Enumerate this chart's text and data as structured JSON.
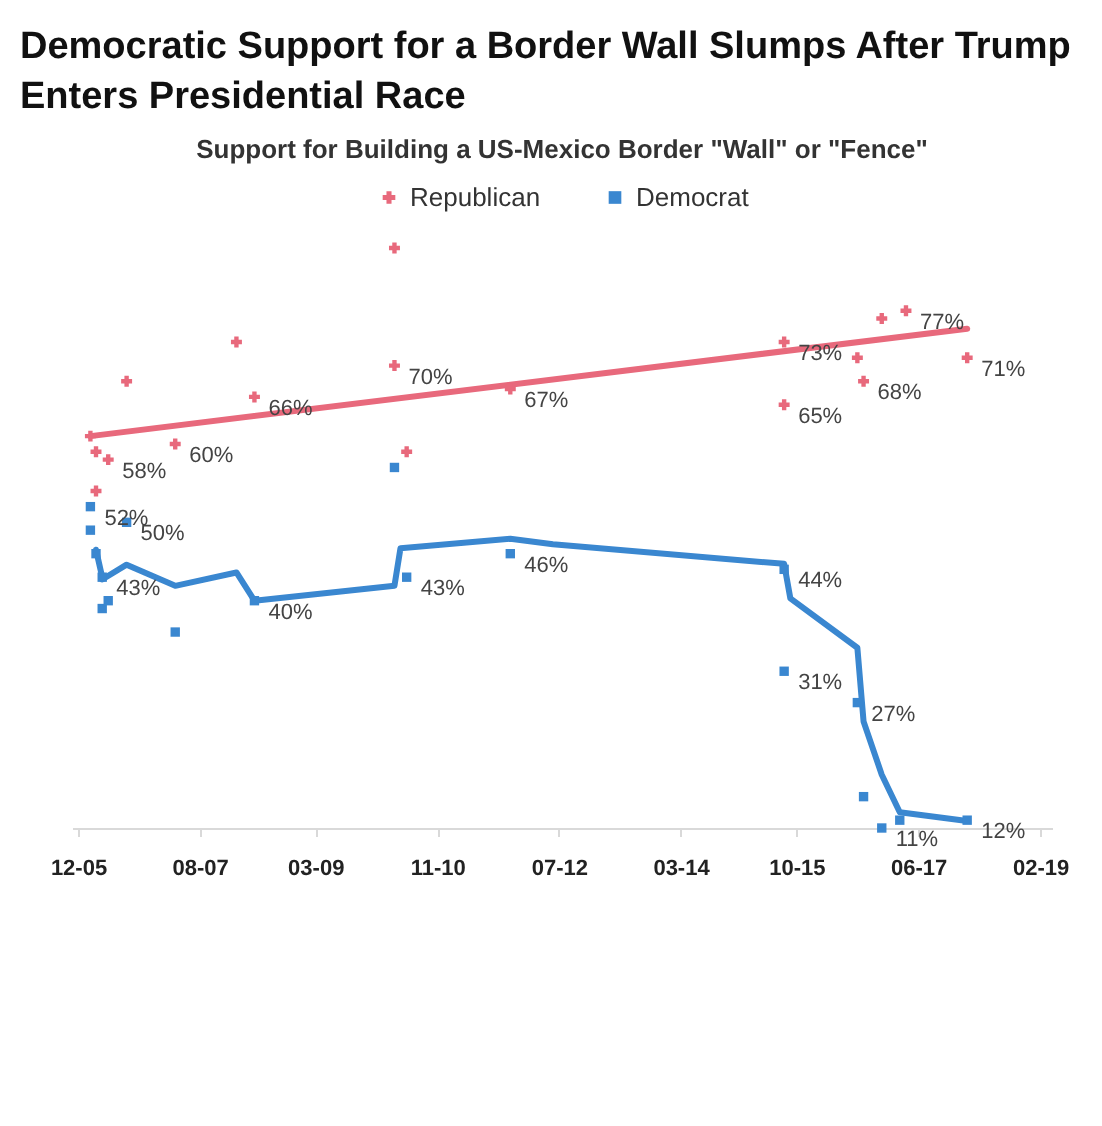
{
  "chart_data": {
    "type": "scatter",
    "title": "Democratic Support for a Border Wall Slumps After Trump Enters Presidential Race",
    "subtitle": "Support for Building a US-Mexico Border \"Wall\" or \"Fence\"",
    "legend": "top",
    "grid": false,
    "tick_labels": "x",
    "xlim": [
      "2005-11",
      "2019-04"
    ],
    "xticks": [
      {
        "value": "2005-12",
        "label": "12-05"
      },
      {
        "value": "2007-08",
        "label": "08-07"
      },
      {
        "value": "2009-03",
        "label": "03-09"
      },
      {
        "value": "2010-11",
        "label": "11-10"
      },
      {
        "value": "2012-07",
        "label": "07-12"
      },
      {
        "value": "2014-03",
        "label": "03-14"
      },
      {
        "value": "2015-10",
        "label": "10-15"
      },
      {
        "value": "2017-06",
        "label": "06-17"
      },
      {
        "value": "2019-02",
        "label": "02-19"
      }
    ],
    "series": [
      {
        "type": "line",
        "color": "#e8697c",
        "line_style": "solid",
        "x": [
          "2006-02",
          "2018-02"
        ],
        "values": [
          61,
          74.7
        ]
      },
      {
        "type": "line",
        "color": "#3a87d0",
        "line_style": "solid",
        "x": [
          "2006-03",
          "2006-04",
          "2006-04",
          "2006-08",
          "2007-04",
          "2008-02",
          "2008-05",
          "2010-04",
          "2010-05",
          "2011-11",
          "2012-06",
          "2015-08",
          "2015-09",
          "2016-08",
          "2016-09",
          "2016-12",
          "2017-03",
          "2018-02"
        ],
        "values": [
          46.5,
          43,
          42.7,
          44.6,
          41.9,
          43.6,
          40,
          41.9,
          46.7,
          47.9,
          47.2,
          44.7,
          40.3,
          34,
          24.6,
          17.8,
          13,
          11.9
        ]
      },
      {
        "name": "Republican",
        "marker": "cross",
        "color": "#e8697c",
        "x": [
          "2006-02",
          "2006-03",
          "2006-05",
          "2006-03",
          "2006-08",
          "2007-04",
          "2008-02",
          "2008-05",
          "2010-04",
          "2010-04",
          "2010-06",
          "2011-11",
          "2015-08",
          "2015-08",
          "2016-08",
          "2016-09",
          "2016-12",
          "2017-04",
          "2018-02"
        ],
        "values": [
          61,
          59,
          58,
          54,
          68,
          60,
          73,
          66,
          85,
          70,
          59,
          67,
          73,
          65,
          71,
          68,
          76,
          77,
          71
        ],
        "value_labels": [
          null,
          null,
          "58%",
          null,
          null,
          "60%",
          null,
          "66%",
          null,
          "70%",
          null,
          "67%",
          "73%",
          "65%",
          null,
          "68%",
          null,
          "77%",
          "71%"
        ]
      },
      {
        "name": "Democrat",
        "marker": "square",
        "color": "#3a87d0",
        "x": [
          "2006-02",
          "2006-02",
          "2006-03",
          "2006-08",
          "2006-04",
          "2006-04",
          "2006-05",
          "2007-04",
          "2008-05",
          "2010-04",
          "2010-06",
          "2011-11",
          "2015-08",
          "2015-08",
          "2016-08",
          "2016-09",
          "2016-12",
          "2017-03",
          "2018-02"
        ],
        "values": [
          52,
          49,
          46,
          50,
          43,
          39,
          40,
          36,
          40,
          57,
          43,
          46,
          44,
          31,
          27,
          15,
          11,
          12,
          12
        ],
        "value_labels": [
          "52%",
          null,
          null,
          "50%",
          "43%",
          null,
          null,
          null,
          "40%",
          null,
          "43%",
          "46%",
          "44%",
          "31%",
          "27%",
          null,
          "11%",
          null,
          "12%"
        ]
      }
    ]
  }
}
